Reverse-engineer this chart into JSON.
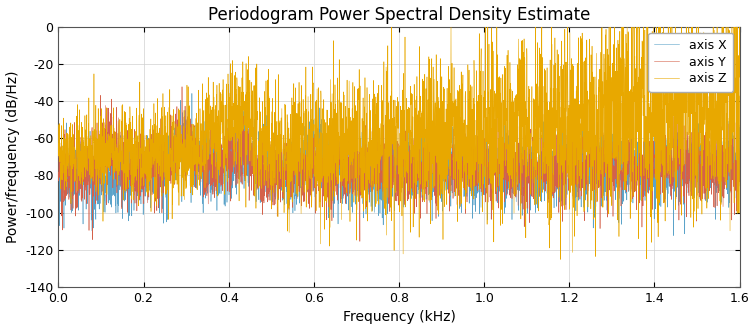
{
  "title": "Periodogram Power Spectral Density Estimate",
  "xlabel": "Frequency (kHz)",
  "ylabel": "Power/frequency (dB/Hz)",
  "xlim": [
    0,
    1.6
  ],
  "ylim": [
    -140,
    0
  ],
  "yticks": [
    0,
    -20,
    -40,
    -60,
    -80,
    -100,
    -120,
    -140
  ],
  "xticks": [
    0,
    0.2,
    0.4,
    0.6,
    0.8,
    1.0,
    1.2,
    1.4,
    1.6
  ],
  "color_x": "#5BA3C9",
  "color_y": "#D4614A",
  "color_z": "#E8A800",
  "legend_labels": [
    "axis X",
    "axis Y",
    "axis Z"
  ],
  "seed": 42,
  "n_points": 4000,
  "title_fontsize": 12,
  "label_fontsize": 10,
  "tick_fontsize": 9,
  "legend_fontsize": 9,
  "linewidth": 0.4,
  "background_color": "#ffffff",
  "grid_color": "#d0d0d0"
}
